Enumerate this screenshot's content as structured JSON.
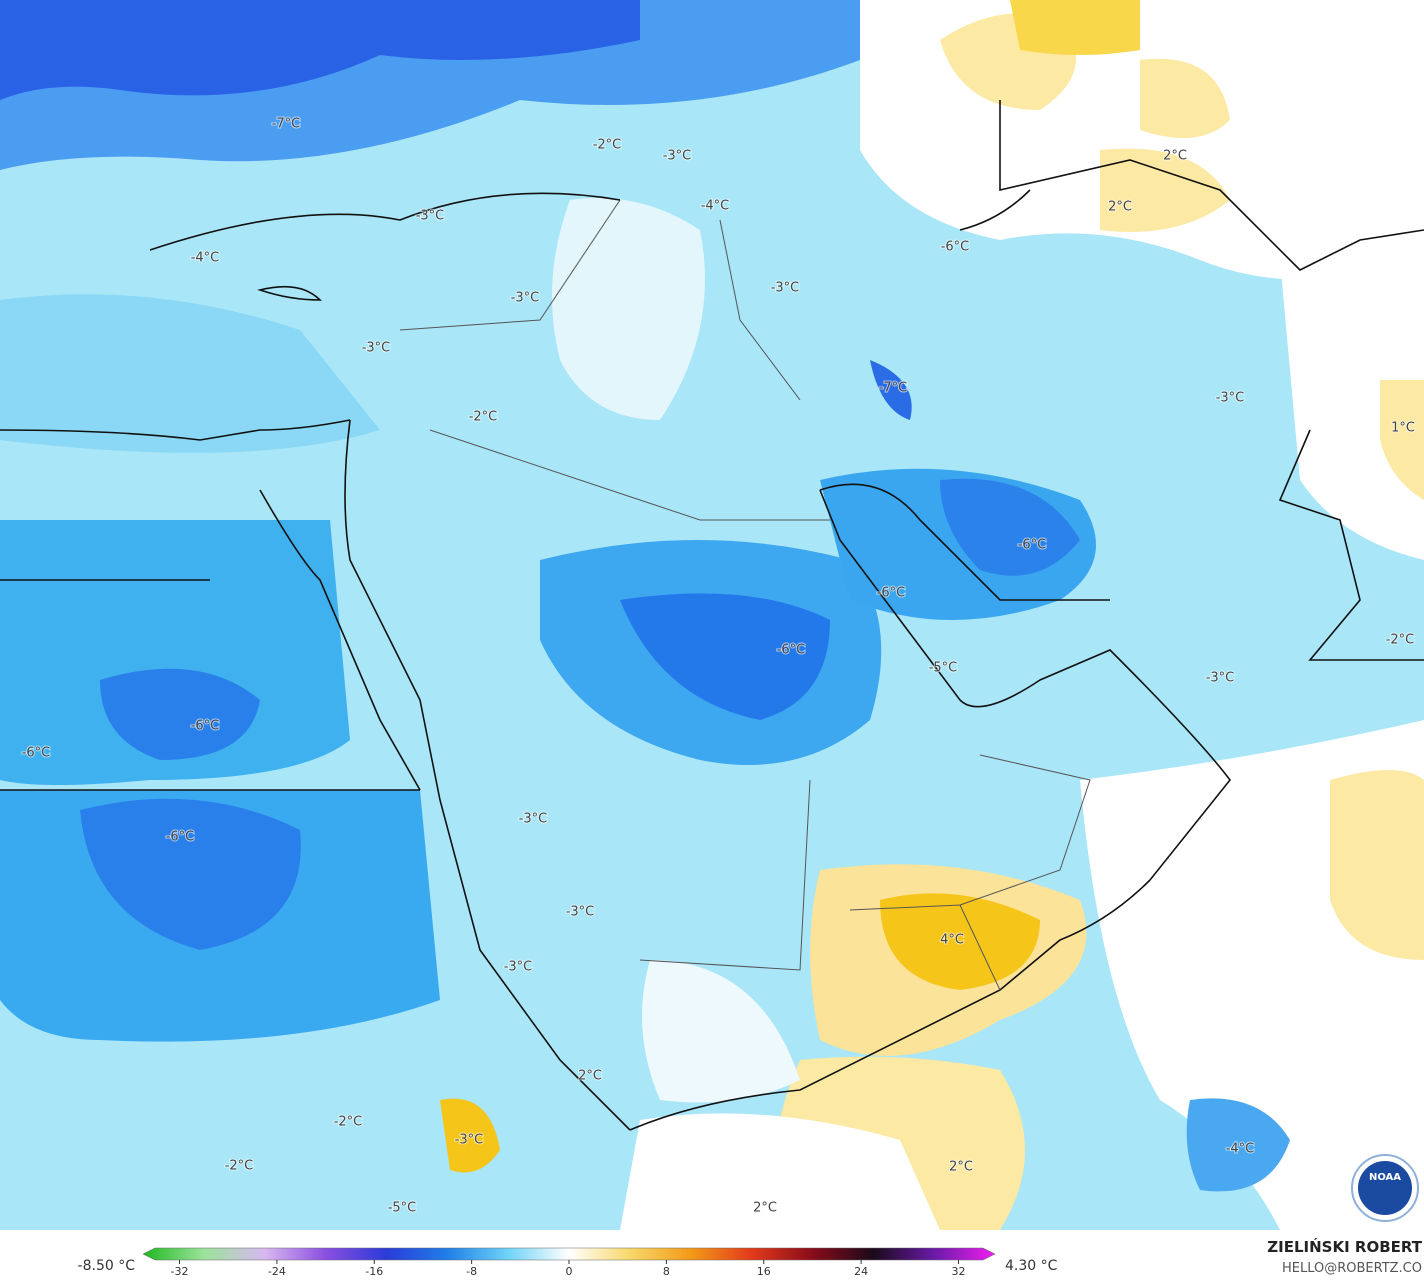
{
  "map": {
    "labels": [
      "-7°C",
      "-2°C",
      "-3°C",
      "-4°C",
      "-3°C",
      "2°C",
      "2°C",
      "-6°C",
      "-4°C",
      "-3°C",
      "-3°C",
      "-3°C",
      "-7°C",
      "-2°C",
      "-3°C",
      "1°C",
      "-6°C",
      "-6°C",
      "-6°C",
      "-5°C",
      "-2°C",
      "-3°C",
      "-6°C",
      "-6°C",
      "-6°C",
      "-3°C",
      "-3°C",
      "4°C",
      "-3°C",
      "2°C",
      "-2°C",
      "-3°C",
      "-4°C",
      "-2°C",
      "2°C",
      "2°C",
      "-5°C"
    ]
  },
  "legend": {
    "min": "-8.50 °C",
    "max": "4.30 °C",
    "range": [
      -35,
      35
    ],
    "ticks": [
      -32,
      -24,
      -16,
      -8,
      0,
      8,
      16,
      24,
      32
    ],
    "colors": [
      "#1fb81f",
      "#9be39b",
      "#d8b8f0",
      "#8a4fe0",
      "#2b3bd8",
      "#1f7fe8",
      "#6fd3f7",
      "#ffffff",
      "#f7d86a",
      "#f39a18",
      "#e23a1a",
      "#8a0c1a",
      "#1a0a1a",
      "#6a1aa8",
      "#f01ef0"
    ]
  },
  "credit": {
    "name": "ZIELIŃSKI ROBERT",
    "email": "HELLO@ROBERTZ.CO"
  },
  "logo": "NOAA"
}
